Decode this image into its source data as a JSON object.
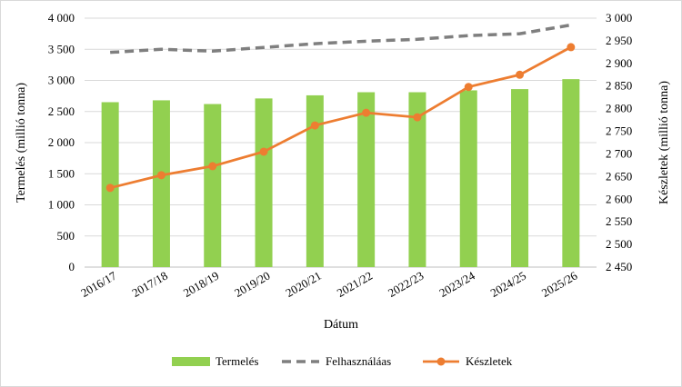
{
  "chart_data": {
    "type": "bar",
    "categories": [
      "2016/17",
      "2017/18",
      "2018/19",
      "2019/20",
      "2020/21",
      "2021/22",
      "2022/23",
      "2023/24",
      "2024/25",
      "2025/26"
    ],
    "xlabel": "Dátum",
    "ylabel": "Termelés (millió tonna)",
    "y2label": "Készletek (millió tonna)",
    "ylim": [
      0,
      4000
    ],
    "y2lim": [
      2450,
      3000
    ],
    "yticks": [
      0,
      500,
      1000,
      1500,
      2000,
      2500,
      3000,
      3500,
      4000
    ],
    "y2ticks": [
      2450,
      2500,
      2550,
      2600,
      2650,
      2700,
      2750,
      2800,
      2850,
      2900,
      2950,
      3000
    ],
    "grid": true,
    "legend_position": "bottom",
    "series": [
      {
        "name": "Termelés",
        "type": "bar",
        "axis": "left",
        "color": "#92d050",
        "values": [
          2650,
          2680,
          2620,
          2710,
          2760,
          2810,
          2810,
          2840,
          2860,
          3020
        ]
      },
      {
        "name": "Felhasználáas",
        "type": "line-dashed",
        "axis": "left",
        "color": "#7f7f7f",
        "values": [
          3450,
          3500,
          3470,
          3530,
          3590,
          3630,
          3660,
          3720,
          3750,
          3890
        ]
      },
      {
        "name": "Készletek",
        "type": "line-marker",
        "axis": "right",
        "color": "#ed7d31",
        "values": [
          2625,
          2653,
          2673,
          2705,
          2763,
          2791,
          2781,
          2848,
          2875,
          2936
        ]
      }
    ]
  }
}
